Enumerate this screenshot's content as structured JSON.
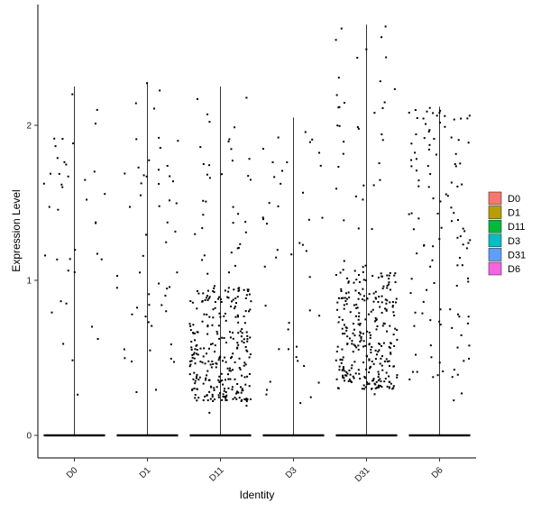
{
  "chart_data": {
    "type": "violin",
    "xlabel": "Identity",
    "ylabel": "Expression Level",
    "categories": [
      "D0",
      "D1",
      "D11",
      "D3",
      "D31",
      "D6"
    ],
    "ylim": [
      -0.15,
      2.75
    ],
    "yticks": [
      0,
      1,
      2
    ],
    "legend": {
      "position": "right",
      "entries": [
        "D0",
        "D1",
        "D11",
        "D3",
        "D31",
        "D6"
      ]
    },
    "series": [
      {
        "name": "D0",
        "color": "#F8766D",
        "violin_max": 2.25,
        "zero_cells": "many",
        "nonzero_points": 40,
        "nonzero_range": [
          0.2,
          2.25
        ]
      },
      {
        "name": "D1",
        "color": "#B79F00",
        "violin_max": 2.28,
        "zero_cells": "many",
        "nonzero_points": 55,
        "nonzero_range": [
          0.25,
          2.28
        ]
      },
      {
        "name": "D11",
        "color": "#00BA38",
        "violin_max": 2.25,
        "zero_cells": "many",
        "nonzero_points": 320,
        "nonzero_range": [
          0.12,
          2.25
        ]
      },
      {
        "name": "D3",
        "color": "#00BFC4",
        "violin_max": 2.05,
        "zero_cells": "many",
        "nonzero_points": 45,
        "nonzero_range": [
          0.15,
          2.05
        ]
      },
      {
        "name": "D31",
        "color": "#619CFF",
        "violin_max": 2.65,
        "zero_cells": "many",
        "nonzero_points": 330,
        "nonzero_range": [
          0.2,
          2.65
        ]
      },
      {
        "name": "D6",
        "color": "#F564E3",
        "violin_max": 2.12,
        "zero_cells": "many",
        "nonzero_points": 120,
        "nonzero_range": [
          0.2,
          2.12
        ]
      }
    ],
    "grid": false
  }
}
